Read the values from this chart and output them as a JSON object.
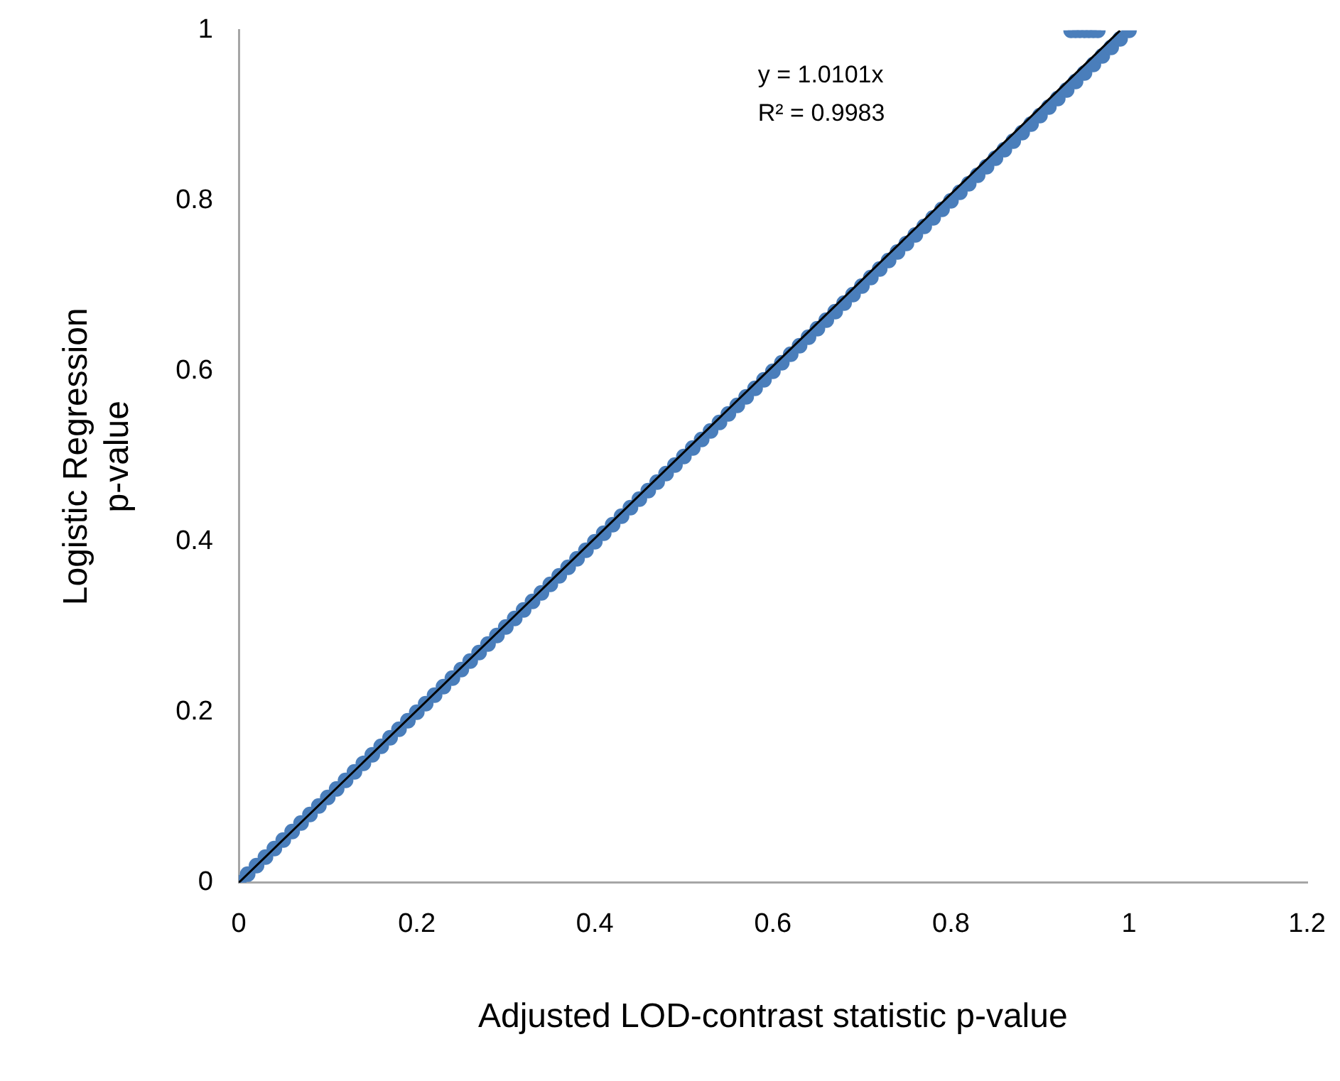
{
  "chart_data": {
    "type": "scatter",
    "xlabel": "Adjusted LOD-contrast statistic p-value",
    "ylabel": "Logistic Regression\np-value",
    "xlim": [
      0,
      1.2
    ],
    "xticks": [
      0,
      0.2,
      0.4,
      0.6,
      0.8,
      1,
      1.2
    ],
    "ylim": [
      0,
      1
    ],
    "yticks": [
      0,
      0.2,
      0.4,
      0.6,
      0.8,
      1
    ],
    "grid": false,
    "legend": false,
    "annotations": [
      "y = 1.0101x",
      "R² = 0.9983"
    ],
    "series": [
      {
        "marker": "circle",
        "color": "#4a7ebb",
        "x": [
          0,
          0.01,
          0.02,
          0.03,
          0.04,
          0.05,
          0.06,
          0.07,
          0.08,
          0.09,
          0.1,
          0.11,
          0.12,
          0.13,
          0.14,
          0.15,
          0.16,
          0.17,
          0.18,
          0.19,
          0.2,
          0.21,
          0.22,
          0.23,
          0.24,
          0.25,
          0.26,
          0.27,
          0.28,
          0.29,
          0.3,
          0.31,
          0.32,
          0.33,
          0.34,
          0.35,
          0.36,
          0.37,
          0.38,
          0.39,
          0.4,
          0.41,
          0.42,
          0.43,
          0.44,
          0.45,
          0.46,
          0.47,
          0.48,
          0.49,
          0.5,
          0.51,
          0.52,
          0.53,
          0.54,
          0.55,
          0.56,
          0.57,
          0.58,
          0.59,
          0.6,
          0.61,
          0.62,
          0.63,
          0.64,
          0.65,
          0.66,
          0.67,
          0.68,
          0.69,
          0.7,
          0.71,
          0.72,
          0.73,
          0.74,
          0.75,
          0.76,
          0.77,
          0.78,
          0.79,
          0.8,
          0.81,
          0.82,
          0.83,
          0.84,
          0.85,
          0.86,
          0.87,
          0.88,
          0.89,
          0.9,
          0.91,
          0.92,
          0.93,
          0.94,
          0.95,
          0.96,
          0.97,
          0.98,
          0.99,
          1,
          0.935,
          0.94,
          0.945,
          0.95,
          0.955,
          0.96,
          0.965
        ],
        "values": [
          0,
          0.01,
          0.02,
          0.03,
          0.04,
          0.05,
          0.06,
          0.07,
          0.08,
          0.09,
          0.1,
          0.11,
          0.12,
          0.13,
          0.14,
          0.15,
          0.16,
          0.17,
          0.18,
          0.19,
          0.2,
          0.21,
          0.22,
          0.23,
          0.24,
          0.25,
          0.26,
          0.27,
          0.28,
          0.29,
          0.3,
          0.31,
          0.32,
          0.33,
          0.34,
          0.35,
          0.36,
          0.37,
          0.38,
          0.39,
          0.4,
          0.41,
          0.42,
          0.43,
          0.44,
          0.45,
          0.46,
          0.47,
          0.48,
          0.49,
          0.5,
          0.51,
          0.52,
          0.53,
          0.54,
          0.55,
          0.56,
          0.57,
          0.58,
          0.59,
          0.6,
          0.61,
          0.62,
          0.63,
          0.64,
          0.65,
          0.66,
          0.67,
          0.68,
          0.69,
          0.7,
          0.71,
          0.72,
          0.73,
          0.74,
          0.75,
          0.76,
          0.77,
          0.78,
          0.79,
          0.8,
          0.81,
          0.82,
          0.83,
          0.84,
          0.85,
          0.86,
          0.87,
          0.88,
          0.89,
          0.9,
          0.91,
          0.92,
          0.93,
          0.94,
          0.95,
          0.96,
          0.97,
          0.98,
          0.99,
          1,
          1,
          1,
          1,
          1,
          1,
          1,
          1
        ]
      },
      {
        "type": "line",
        "marker": "none",
        "color": "#000000",
        "x": [
          0,
          0.99
        ],
        "values": [
          0,
          1
        ]
      }
    ]
  }
}
